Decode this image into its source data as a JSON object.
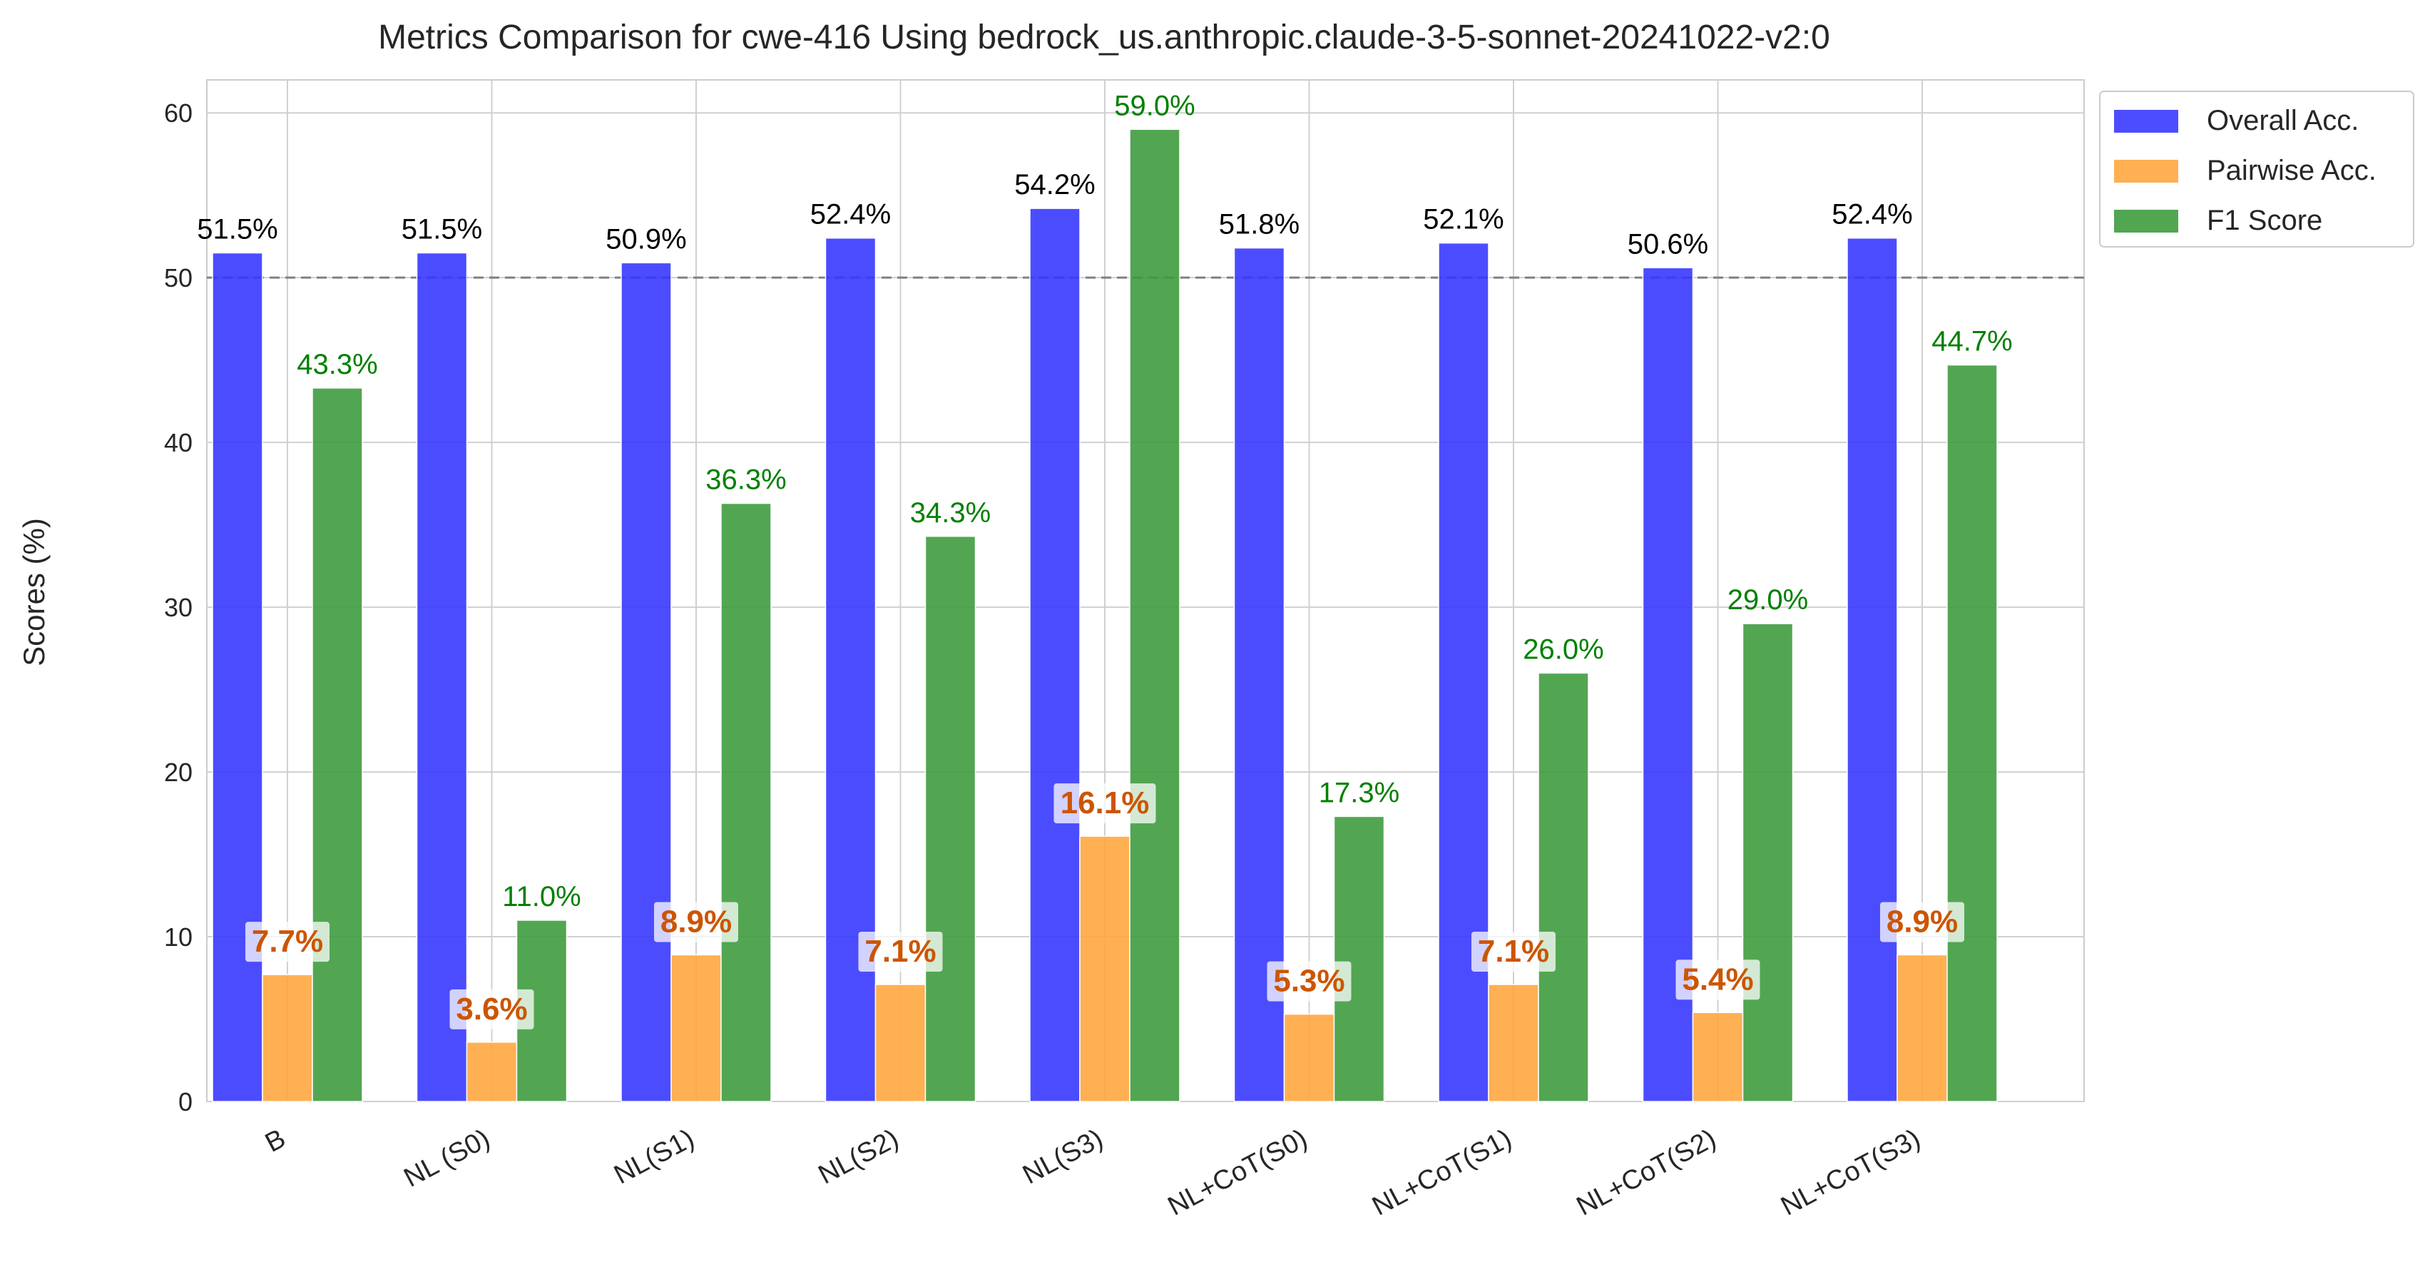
{
  "chart_data": {
    "type": "bar",
    "title": "Metrics Comparison for cwe-416 Using bedrock_us.anthropic.claude-3-5-sonnet-20241022-v2:0",
    "xlabel": "",
    "ylabel": "Scores (%)",
    "ylim": [
      0,
      62
    ],
    "yticks": [
      0,
      10,
      20,
      30,
      40,
      50,
      60
    ],
    "categories": [
      "B",
      "NL (S0)",
      "NL(S1)",
      "NL(S2)",
      "NL(S3)",
      "NL+CoT(S0)",
      "NL+CoT(S1)",
      "NL+CoT(S2)",
      "NL+CoT(S3)"
    ],
    "series": [
      {
        "name": "Overall Acc.",
        "color": "#3333ff",
        "values": [
          51.5,
          51.5,
          50.9,
          52.4,
          54.2,
          51.8,
          52.1,
          50.6,
          52.4
        ],
        "labels": [
          "51.5%",
          "51.5%",
          "50.9%",
          "52.4%",
          "54.2%",
          "51.8%",
          "52.1%",
          "50.6%",
          "52.4%"
        ]
      },
      {
        "name": "Pairwise Acc.",
        "color": "#ffa53a",
        "values": [
          7.7,
          3.6,
          8.9,
          7.1,
          16.1,
          5.3,
          7.1,
          5.4,
          8.9
        ],
        "labels": [
          "7.7%",
          "3.6%",
          "8.9%",
          "7.1%",
          "16.1%",
          "5.3%",
          "7.1%",
          "5.4%",
          "8.9%"
        ]
      },
      {
        "name": "F1 Score",
        "color": "#3a9a3a",
        "values": [
          43.3,
          11.0,
          36.3,
          34.3,
          59.0,
          17.3,
          26.0,
          29.0,
          44.7
        ],
        "labels": [
          "43.3%",
          "11.0%",
          "36.3%",
          "34.3%",
          "59.0%",
          "17.3%",
          "26.0%",
          "29.0%",
          "44.7%"
        ]
      }
    ],
    "reference_line": {
      "y": 50,
      "style": "dashed",
      "color": "#808080"
    },
    "label_colors": {
      "overall": "#000000",
      "pairwise": "#cc5500",
      "f1": "#008000"
    },
    "grid": true,
    "legend": "top-right, outside"
  }
}
